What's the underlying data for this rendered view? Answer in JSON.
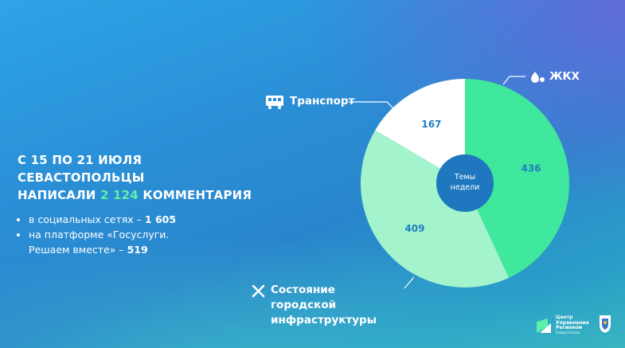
{
  "summary": {
    "title_line1": "С 15 ПО 21 ИЮЛЯ СЕВАСТОПОЛЬЦЫ",
    "title_line2_before": "НАПИСАЛИ",
    "total": "2 124",
    "title_line2_after": "КОММЕНТАРИЯ",
    "bullets": [
      {
        "text": "в социальных сетях –",
        "number": "1 605"
      },
      {
        "text": "на платформе «Госуслуги. Решаем вместе» –",
        "number": "519"
      }
    ]
  },
  "chart_data": {
    "type": "donut",
    "center_label": "Темы недели",
    "categories": [
      "ЖКХ",
      "Состояние городской инфраструктуры",
      "Транспорт"
    ],
    "values": [
      436,
      409,
      167
    ],
    "colors": [
      "#3fe89c",
      "#a3f3cc",
      "#ffffff"
    ],
    "value_label_color": "#1f7fc2",
    "center_color": "#1f78bf"
  },
  "footer": {
    "logo_name": "Центр Управления Регионом",
    "logo_city": "Севастополь"
  }
}
